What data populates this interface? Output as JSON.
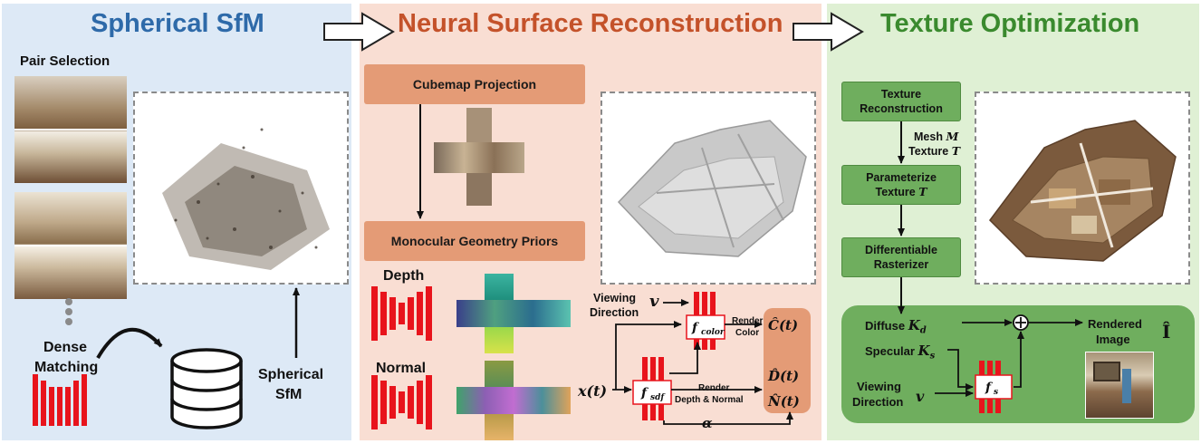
{
  "panels": {
    "sfm": {
      "title": "Spherical SfM",
      "title_color": "#2e6aa9",
      "pair_selection_label": "Pair Selection",
      "dense_matching_label_1": "Dense",
      "dense_matching_label_2": "Matching",
      "spherical_sfm_label_1": "Spherical",
      "spherical_sfm_label_2": "SfM"
    },
    "nsr": {
      "title": "Neural Surface Reconstruction",
      "title_color": "#c4522a",
      "cubemap_projection": "Cubemap Projection",
      "monocular_priors": "Monocular Geometry Priors",
      "depth_label": "Depth",
      "normal_label": "Normal",
      "viewing_label_1": "Viewing",
      "viewing_label_2": "Direction",
      "v_symbol": "v",
      "x_t": "x(t)",
      "f_color": "f",
      "f_color_sub": "color",
      "f_sdf": "f",
      "f_sdf_sub": "sdf",
      "render_color_1": "Render",
      "render_color_2": "Color",
      "render_depth_1": "Render",
      "render_depth_2": "Depth & Normal",
      "c_hat": "Ĉ(t)",
      "d_hat": "D̂(t)",
      "n_hat": "N̂(t)",
      "alpha": "α"
    },
    "tex": {
      "title": "Texture Optimization",
      "title_color": "#3a8a2e",
      "texture_reconstruction_1": "Texture",
      "texture_reconstruction_2": "Reconstruction",
      "mesh_label": "Mesh",
      "mesh_symbol": "M",
      "texture_label": "Texture",
      "texture_symbol": "T",
      "parameterize_1": "Parameterize",
      "parameterize_2": "Texture",
      "parameterize_symbol": "T",
      "rasterizer_1": "Differentiable",
      "rasterizer_2": "Rasterizer",
      "diffuse_label": "Diffuse",
      "diffuse_symbol": "K",
      "diffuse_sub": "d",
      "specular_label": "Specular",
      "specular_symbol": "K",
      "specular_sub": "s",
      "viewing_label_1": "Viewing",
      "viewing_label_2": "Direction",
      "v_symbol": "v",
      "f_s": "f",
      "f_s_sub": "s",
      "rendered_1": "Rendered",
      "rendered_2": "Image",
      "i_hat": "Î"
    }
  },
  "colors": {
    "network_red": "#e8141c",
    "flow_arrow": "#111111"
  }
}
